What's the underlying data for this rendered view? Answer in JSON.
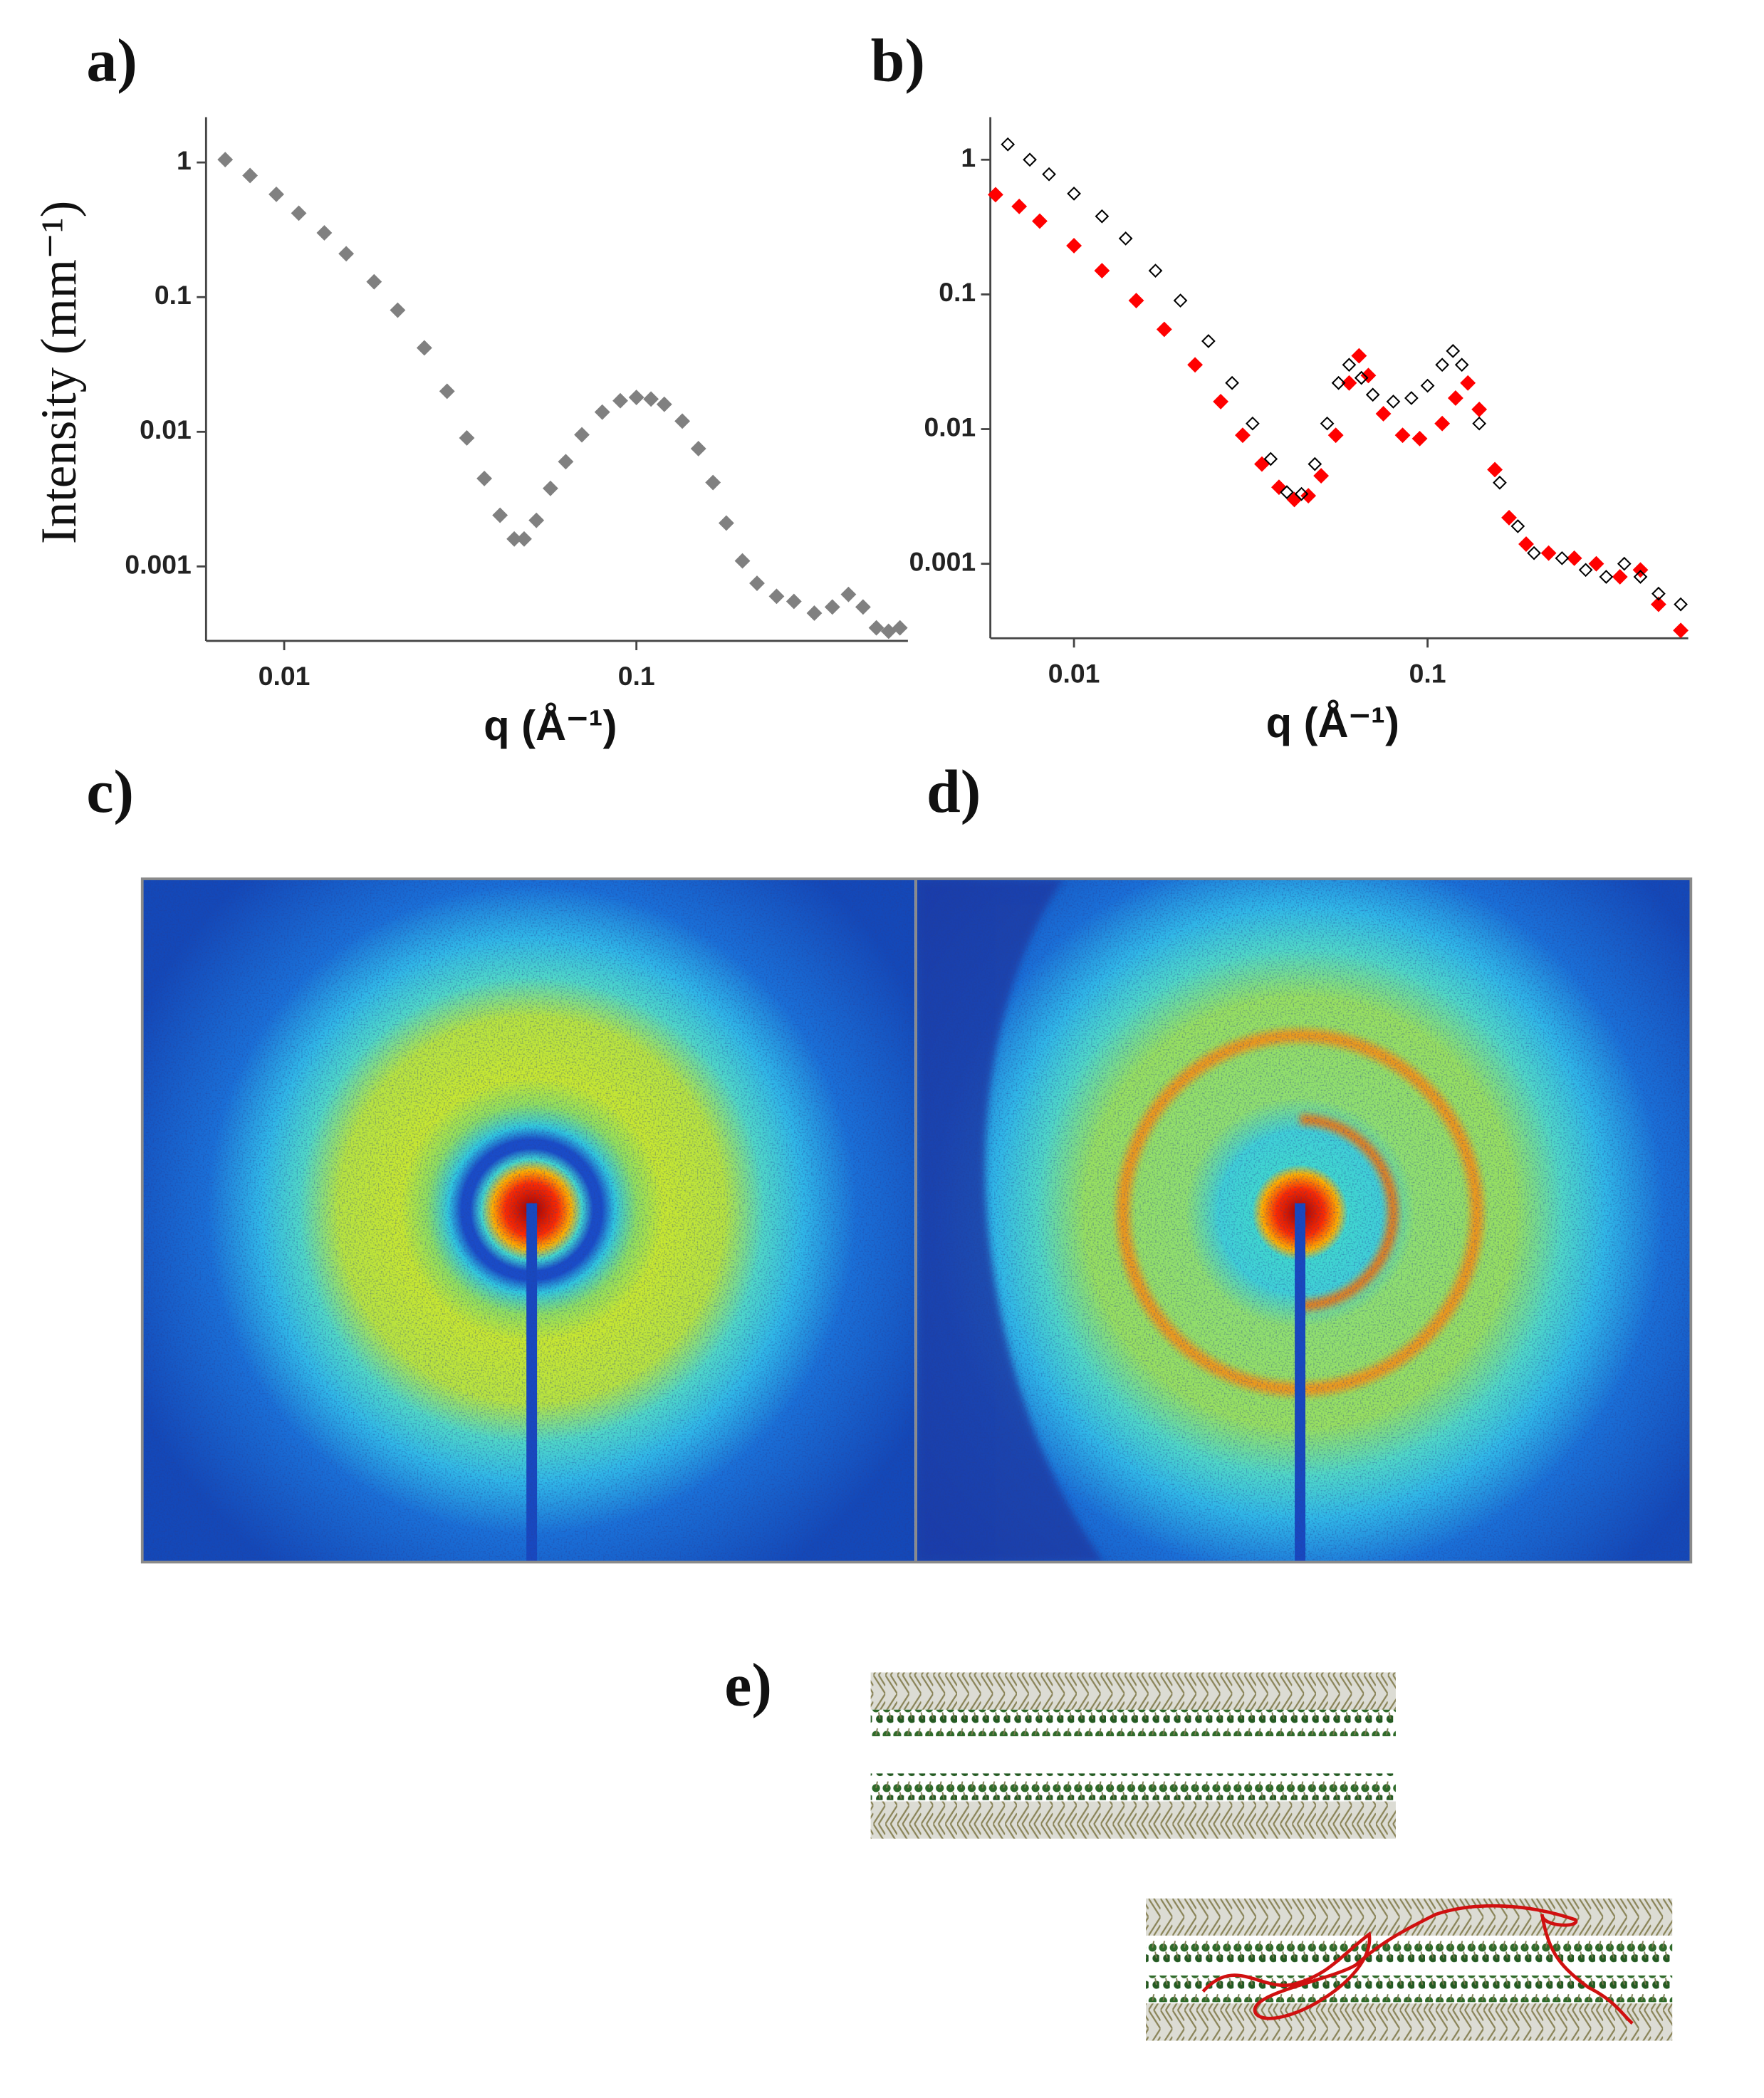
{
  "chart_data": [
    {
      "type": "scatter",
      "panel": "a)",
      "x_label": "q (Å⁻¹)",
      "y_label": "Intensity (mm⁻¹)",
      "log_scale": {
        "x": true,
        "y": true
      },
      "xlim": [
        0.006,
        0.59
      ],
      "ylim": [
        0.00028,
        2.17
      ],
      "xticks": [
        0.01,
        0.1
      ],
      "yticks": [
        0.001,
        0.01,
        0.1,
        1
      ],
      "series": [
        {
          "color": "#808080",
          "filled": true,
          "x": [
            0.0068,
            0.008,
            0.0095,
            0.011,
            0.013,
            0.015,
            0.018,
            0.021,
            0.025,
            0.029,
            0.033,
            0.037,
            0.041,
            0.045,
            0.048,
            0.052,
            0.057,
            0.063,
            0.07,
            0.08,
            0.09,
            0.1,
            0.11,
            0.12,
            0.135,
            0.15,
            0.165,
            0.18,
            0.2,
            0.22,
            0.25,
            0.28,
            0.32,
            0.36,
            0.4,
            0.44,
            0.48,
            0.52,
            0.56
          ],
          "values": [
            1.05,
            0.8,
            0.58,
            0.42,
            0.3,
            0.21,
            0.13,
            0.08,
            0.042,
            0.02,
            0.009,
            0.0045,
            0.0024,
            0.0016,
            0.0016,
            0.0022,
            0.0038,
            0.006,
            0.0095,
            0.014,
            0.017,
            0.018,
            0.0175,
            0.016,
            0.012,
            0.0075,
            0.0042,
            0.0021,
            0.0011,
            0.00075,
            0.0006,
            0.00055,
            0.00045,
            0.0005,
            0.00062,
            0.0005,
            0.00035,
            0.00033,
            0.00035
          ]
        }
      ]
    },
    {
      "type": "scatter",
      "panel": "b)",
      "x_label": "q (Å⁻¹)",
      "log_scale": {
        "x": true,
        "y": true
      },
      "xlim": [
        0.0058,
        0.546
      ],
      "ylim": [
        0.00028,
        2.07
      ],
      "xticks": [
        0.01,
        0.1
      ],
      "yticks": [
        0.001,
        0.01,
        0.1,
        1
      ],
      "series": [
        {
          "color": "#ff0000",
          "filled": true,
          "x": [
            0.006,
            0.007,
            0.008,
            0.01,
            0.012,
            0.015,
            0.018,
            0.022,
            0.026,
            0.03,
            0.034,
            0.038,
            0.042,
            0.046,
            0.05,
            0.055,
            0.06,
            0.064,
            0.068,
            0.075,
            0.085,
            0.095,
            0.11,
            0.12,
            0.13,
            0.14,
            0.155,
            0.17,
            0.19,
            0.22,
            0.26,
            0.3,
            0.35,
            0.4,
            0.45,
            0.52
          ],
          "values": [
            0.55,
            0.45,
            0.35,
            0.23,
            0.15,
            0.09,
            0.055,
            0.03,
            0.016,
            0.009,
            0.0055,
            0.0037,
            0.003,
            0.0032,
            0.0045,
            0.009,
            0.022,
            0.035,
            0.025,
            0.013,
            0.009,
            0.0085,
            0.011,
            0.017,
            0.022,
            0.014,
            0.005,
            0.0022,
            0.0014,
            0.0012,
            0.0011,
            0.001,
            0.0008,
            0.0009,
            0.0005,
            0.00032
          ]
        },
        {
          "color": "#000000",
          "filled": false,
          "x": [
            0.0065,
            0.0075,
            0.0085,
            0.01,
            0.012,
            0.014,
            0.017,
            0.02,
            0.024,
            0.028,
            0.032,
            0.036,
            0.04,
            0.044,
            0.048,
            0.052,
            0.056,
            0.06,
            0.065,
            0.07,
            0.08,
            0.09,
            0.1,
            0.11,
            0.118,
            0.125,
            0.14,
            0.16,
            0.18,
            0.2,
            0.24,
            0.28,
            0.32,
            0.36,
            0.4,
            0.45,
            0.52
          ],
          "values": [
            1.3,
            1.0,
            0.78,
            0.56,
            0.38,
            0.26,
            0.15,
            0.09,
            0.045,
            0.022,
            0.011,
            0.006,
            0.0034,
            0.0033,
            0.0055,
            0.011,
            0.022,
            0.03,
            0.024,
            0.018,
            0.016,
            0.017,
            0.021,
            0.03,
            0.038,
            0.03,
            0.011,
            0.004,
            0.0019,
            0.0012,
            0.0011,
            0.0009,
            0.0008,
            0.001,
            0.0008,
            0.0006,
            0.0005
          ]
        }
      ]
    }
  ],
  "images": [
    {
      "label": "c)"
    },
    {
      "label": "d)"
    },
    {
      "label": "e)"
    }
  ]
}
